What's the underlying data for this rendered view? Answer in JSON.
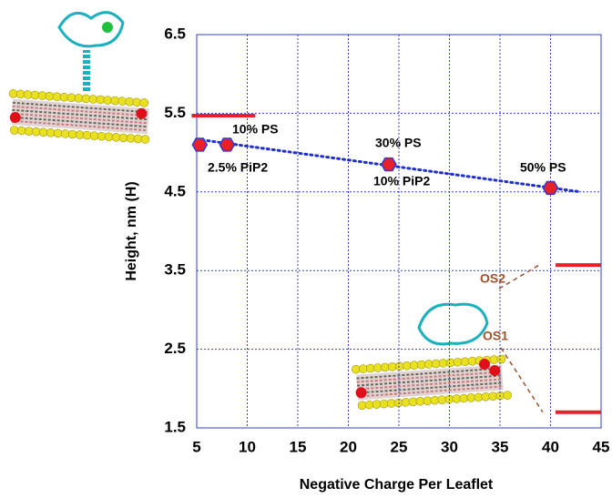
{
  "chart_data": {
    "type": "scatter",
    "x_label": "Negative Charge Per Leaflet",
    "y_label": "Height, nm (H)",
    "x": [
      5.3,
      8,
      24,
      40
    ],
    "values": [
      5.1,
      5.1,
      4.85,
      4.55
    ],
    "color": "#e8202a",
    "edge_color": "#2b3bd6",
    "trend_line": {
      "x": [
        5,
        43
      ],
      "values": [
        5.17,
        4.5
      ],
      "color": "#1f2fd0"
    },
    "reference_levels": [
      {
        "x": [
          4.5,
          10.8
        ],
        "value": 5.47
      },
      {
        "x": [
          40.5,
          45
        ],
        "value": 3.57
      },
      {
        "x": [
          40.5,
          45
        ],
        "value": 1.7
      }
    ],
    "reference_color": "#e8202a",
    "annotations": [
      "10% PS",
      "2.5% PiP2",
      "30% PS",
      "10% PiP2",
      "50% PS",
      "OS2",
      "OS1"
    ],
    "xlim": [
      5,
      45
    ],
    "xticks": [
      5,
      10,
      15,
      20,
      25,
      30,
      35,
      40,
      45
    ],
    "ylim": [
      1.5,
      6.5
    ],
    "yticks": [
      1.5,
      2.5,
      3.5,
      4.5,
      5.5,
      6.5
    ],
    "grid": true
  }
}
